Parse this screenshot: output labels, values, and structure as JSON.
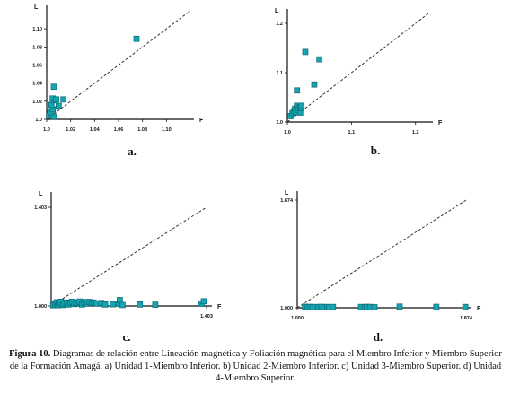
{
  "chart_data": [
    {
      "type": "scatter",
      "panel_label": "a.",
      "xlabel": "F",
      "ylabel": "L",
      "xlim": [
        1.0,
        1.12
      ],
      "ylim": [
        1.0,
        1.12
      ],
      "xticks": [
        "1.0",
        "1.02",
        "1.04",
        "1.06",
        "1.08",
        "1.10"
      ],
      "yticks": [
        "1.0",
        "1.02",
        "1.04",
        "1.06",
        "1.08",
        "1.10"
      ],
      "reference_line": "y = x (dashed)",
      "points": [
        [
          1.002,
          1.004
        ],
        [
          1.004,
          1.004
        ],
        [
          1.006,
          1.003
        ],
        [
          1.003,
          1.008
        ],
        [
          1.005,
          1.011
        ],
        [
          1.004,
          1.016
        ],
        [
          1.006,
          1.021
        ],
        [
          1.005,
          1.023
        ],
        [
          1.008,
          1.022
        ],
        [
          1.006,
          1.036
        ],
        [
          1.01,
          1.015
        ],
        [
          1.014,
          1.022
        ],
        [
          1.075,
          1.089
        ]
      ]
    },
    {
      "type": "scatter",
      "panel_label": "b.",
      "xlabel": "F",
      "ylabel": "L",
      "xlim": [
        1.0,
        1.22
      ],
      "ylim": [
        1.0,
        1.22
      ],
      "xticks": [
        "1.0",
        "1.1",
        "1.2"
      ],
      "yticks": [
        "1.0",
        "1.1",
        "1.2"
      ],
      "reference_line": "y = x (dashed)",
      "points": [
        [
          1.005,
          1.012
        ],
        [
          1.008,
          1.018
        ],
        [
          1.01,
          1.022
        ],
        [
          1.012,
          1.027
        ],
        [
          1.013,
          1.02
        ],
        [
          1.015,
          1.033
        ],
        [
          1.017,
          1.025
        ],
        [
          1.02,
          1.03
        ],
        [
          1.02,
          1.019
        ],
        [
          1.022,
          1.028
        ],
        [
          1.022,
          1.033
        ],
        [
          1.015,
          1.064
        ],
        [
          1.028,
          1.142
        ],
        [
          1.042,
          1.076
        ],
        [
          1.05,
          1.127
        ]
      ]
    },
    {
      "type": "scatter",
      "panel_label": "c.",
      "xlabel": "F",
      "ylabel": "L",
      "xlim": [
        1.0,
        1.403
      ],
      "ylim": [
        1.0,
        1.403
      ],
      "xticks": [
        "1.403"
      ],
      "yticks": [
        "1.000",
        "1.403"
      ],
      "reference_line": "y = x (dashed)",
      "points": [
        [
          1.005,
          1.003
        ],
        [
          1.01,
          1.007
        ],
        [
          1.014,
          1.015
        ],
        [
          1.018,
          1.003
        ],
        [
          1.02,
          1.01
        ],
        [
          1.025,
          1.017
        ],
        [
          1.03,
          1.004
        ],
        [
          1.034,
          1.01
        ],
        [
          1.04,
          1.014
        ],
        [
          1.044,
          1.006
        ],
        [
          1.05,
          1.012
        ],
        [
          1.054,
          1.017
        ],
        [
          1.06,
          1.008
        ],
        [
          1.064,
          1.011
        ],
        [
          1.07,
          1.014
        ],
        [
          1.074,
          1.018
        ],
        [
          1.08,
          1.006
        ],
        [
          1.085,
          1.012
        ],
        [
          1.09,
          1.016
        ],
        [
          1.095,
          1.01
        ],
        [
          1.1,
          1.016
        ],
        [
          1.105,
          1.012
        ],
        [
          1.11,
          1.014
        ],
        [
          1.118,
          1.01
        ],
        [
          1.13,
          1.012
        ],
        [
          1.14,
          1.006
        ],
        [
          1.16,
          1.007
        ],
        [
          1.175,
          1.009
        ],
        [
          1.178,
          1.024
        ],
        [
          1.185,
          1.004
        ],
        [
          1.23,
          1.006
        ],
        [
          1.27,
          1.005
        ],
        [
          1.39,
          1.009
        ],
        [
          1.396,
          1.019
        ]
      ]
    },
    {
      "type": "scatter",
      "panel_label": "d.",
      "xlabel": "F",
      "ylabel": "L",
      "xlim": [
        1.0,
        1.874
      ],
      "ylim": [
        1.0,
        1.874
      ],
      "xticks": [
        "1.000",
        "1.874"
      ],
      "yticks": [
        "1.000",
        "1.874"
      ],
      "reference_line": "y = x (dashed)",
      "points": [
        [
          1.04,
          1.008
        ],
        [
          1.055,
          1.005
        ],
        [
          1.068,
          1.007
        ],
        [
          1.08,
          1.004
        ],
        [
          1.095,
          1.006
        ],
        [
          1.11,
          1.005
        ],
        [
          1.125,
          1.007
        ],
        [
          1.14,
          1.004
        ],
        [
          1.155,
          1.006
        ],
        [
          1.165,
          1.005
        ],
        [
          1.185,
          1.006
        ],
        [
          1.33,
          1.006
        ],
        [
          1.35,
          1.005
        ],
        [
          1.36,
          1.007
        ],
        [
          1.37,
          1.003
        ],
        [
          1.38,
          1.006
        ],
        [
          1.4,
          1.004
        ],
        [
          1.53,
          1.009
        ],
        [
          1.72,
          1.007
        ],
        [
          1.87,
          1.006
        ]
      ]
    }
  ],
  "caption": {
    "label": "Figura 10.",
    "text": " Diagramas de relación entre Lineación magnética y Foliación magnética para el Miembro Inferior y Miembro Superior de la Formación Amagá. a) Unidad 1-Miembro Inferior. b) Unidad 2-Miembro Inferior. c) Unidad 3-Miembro Superior. d) Unidad 4-Miembro Superior."
  },
  "colors": {
    "marker_fill": "#17a3b0",
    "marker_edge": "#0b6c75",
    "axis": "#111111",
    "reference_line": "#333333"
  }
}
